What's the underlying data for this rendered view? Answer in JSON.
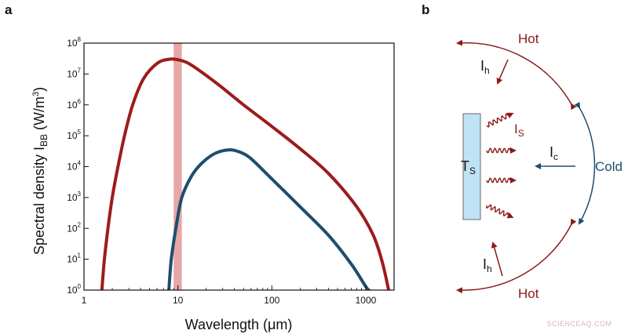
{
  "panel_a": {
    "letter": "a"
  },
  "panel_b": {
    "letter": "b",
    "label_hot_top": "Hot",
    "label_hot_bottom": "Hot",
    "label_cold": "Cold",
    "label_ih_top": "I",
    "label_ih_top_sub": "h",
    "label_ih_bottom": "I",
    "label_ih_bottom_sub": "h",
    "label_is": "I",
    "label_is_sub": "S",
    "label_ic": "I",
    "label_ic_sub": "c",
    "label_ts": "T",
    "label_ts_sub": "S",
    "colors": {
      "hot": "#8b1a1a",
      "cold": "#1d4e6e",
      "surface_fill": "#bfe3f5",
      "surface_stroke": "#6a6a6a"
    }
  },
  "watermark": "SCIENCEAQ.COM",
  "chart_data": {
    "type": "line",
    "xscale": "log",
    "yscale": "log",
    "xlim": [
      1,
      2000
    ],
    "ylim": [
      1,
      100000000
    ],
    "xlabel": "Wavelength (μm)",
    "ylabel_main": "Spectral density I",
    "ylabel_sub": "BB",
    "ylabel_unit": " (W/m",
    "ylabel_unit_sup": "3",
    "ylabel_unit_close": ")",
    "x_ticks": [
      {
        "value": 1,
        "label": "1"
      },
      {
        "value": 10,
        "label": "10"
      },
      {
        "value": 100,
        "label": "100"
      },
      {
        "value": 1000,
        "label": "1000"
      }
    ],
    "y_ticks": [
      {
        "value": 1,
        "base": "10",
        "exp": "0"
      },
      {
        "value": 10,
        "base": "10",
        "exp": "1"
      },
      {
        "value": 100,
        "base": "10",
        "exp": "2"
      },
      {
        "value": 1000,
        "base": "10",
        "exp": "3"
      },
      {
        "value": 10000,
        "base": "10",
        "exp": "4"
      },
      {
        "value": 100000,
        "base": "10",
        "exp": "5"
      },
      {
        "value": 1000000,
        "base": "10",
        "exp": "6"
      },
      {
        "value": 10000000,
        "base": "10",
        "exp": "7"
      },
      {
        "value": 100000000,
        "base": "10",
        "exp": "8"
      }
    ],
    "highlight_band": {
      "x_range": [
        9,
        11
      ],
      "color": "#e8a7a7"
    },
    "series": [
      {
        "color": "#9e1b1b",
        "points": [
          [
            1.55,
            1
          ],
          [
            1.65,
            10
          ],
          [
            1.8,
            100
          ],
          [
            2.0,
            1000
          ],
          [
            2.3,
            10000
          ],
          [
            2.7,
            100000
          ],
          [
            3.3,
            1000000
          ],
          [
            4.3,
            7000000
          ],
          [
            6,
            22000000
          ],
          [
            8,
            30000000
          ],
          [
            10,
            29000000
          ],
          [
            13,
            22000000
          ],
          [
            20,
            9000000
          ],
          [
            30,
            3500000
          ],
          [
            50,
            1000000
          ],
          [
            100,
            200000
          ],
          [
            200,
            38000
          ],
          [
            400,
            6000
          ],
          [
            800,
            500
          ],
          [
            1200,
            60
          ],
          [
            1500,
            8
          ],
          [
            1750,
            1
          ]
        ]
      },
      {
        "color": "#1d4e6e",
        "points": [
          [
            8,
            1
          ],
          [
            8.5,
            10
          ],
          [
            9.5,
            100
          ],
          [
            11,
            1000
          ],
          [
            14,
            5000
          ],
          [
            18,
            13000
          ],
          [
            25,
            27000
          ],
          [
            35,
            35000
          ],
          [
            45,
            30000
          ],
          [
            60,
            18000
          ],
          [
            100,
            4000
          ],
          [
            200,
            500
          ],
          [
            400,
            60
          ],
          [
            700,
            7
          ],
          [
            1000,
            1.3
          ],
          [
            1080,
            1
          ]
        ]
      }
    ]
  }
}
